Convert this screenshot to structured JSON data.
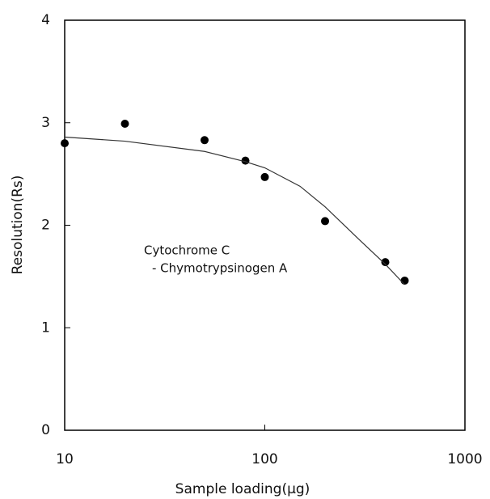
{
  "chart_data": {
    "type": "scatter",
    "x_label": "Sample loading(μg)",
    "y_label": "Resolution(Rs)",
    "annotations": [
      "Cytochrome C",
      "- Chymotrypsinogen A"
    ],
    "xscale": "log",
    "xlim": [
      10,
      1000
    ],
    "xticks": [
      10,
      100,
      1000
    ],
    "ylim": [
      0,
      4
    ],
    "yticks": [
      0,
      1,
      2,
      3,
      4
    ],
    "series": [
      {
        "style": "points",
        "color": "#000000",
        "x": [
          10,
          20,
          50,
          80,
          100,
          200,
          400,
          500
        ],
        "values": [
          2.8,
          2.99,
          2.83,
          2.63,
          2.47,
          2.04,
          1.64,
          1.46
        ]
      },
      {
        "style": "line",
        "color": "#333333",
        "x": [
          10,
          20,
          50,
          80,
          100,
          150,
          200,
          300,
          400,
          500
        ],
        "values": [
          2.86,
          2.82,
          2.72,
          2.62,
          2.56,
          2.38,
          2.18,
          1.85,
          1.62,
          1.42
        ]
      }
    ]
  }
}
